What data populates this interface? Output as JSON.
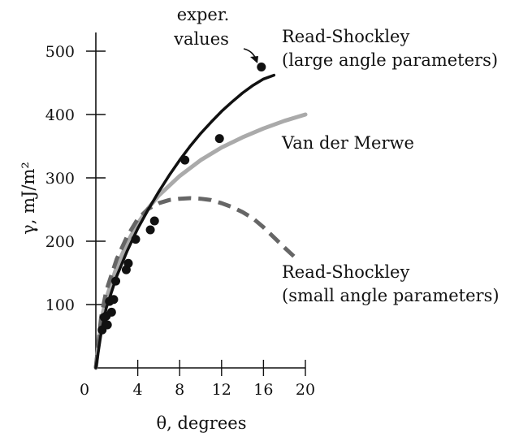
{
  "chart_data": {
    "type": "line",
    "xlabel": "θ, degrees",
    "ylabel": "γ, mJ/m²",
    "xlim": [
      0,
      20
    ],
    "ylim": [
      0,
      500
    ],
    "x_ticks": [
      0,
      4,
      8,
      12,
      16,
      20
    ],
    "x_tick_labels": [
      "0",
      "4",
      "8",
      "12",
      "16",
      "20"
    ],
    "y_ticks": [
      100,
      200,
      300,
      400,
      500
    ],
    "y_tick_labels": [
      "100",
      "200",
      "300",
      "400",
      "500"
    ],
    "grid": false,
    "series": [
      {
        "name": "Read-Shockley (large angle parameters)",
        "style": "solid",
        "color": "#111111",
        "x": [
          0,
          0.5,
          1,
          2,
          3,
          4,
          5,
          6,
          7,
          8,
          9,
          10,
          11,
          12,
          13,
          14,
          15,
          16,
          17
        ],
        "y": [
          0,
          55,
          95,
          145,
          185,
          220,
          250,
          278,
          304,
          328,
          350,
          370,
          388,
          405,
          420,
          434,
          446,
          456,
          462
        ]
      },
      {
        "name": "Van der Merwe",
        "style": "solid",
        "color": "#aaaaaa",
        "x": [
          0,
          0.5,
          1,
          2,
          3,
          4,
          5,
          6,
          8,
          10,
          12,
          14,
          16,
          18,
          20
        ],
        "y": [
          0,
          75,
          110,
          160,
          198,
          228,
          252,
          272,
          303,
          328,
          348,
          364,
          378,
          390,
          400
        ]
      },
      {
        "name": "Read-Shockley (small angle parameters)",
        "style": "dashed",
        "color": "#666666",
        "x": [
          0,
          0.5,
          1,
          2,
          3,
          4,
          5,
          6,
          7,
          8,
          9,
          10,
          11,
          12,
          13,
          14,
          15,
          16,
          17,
          18,
          19.3
        ],
        "y": [
          0,
          80,
          122,
          172,
          208,
          235,
          251,
          260,
          265,
          267,
          268,
          267,
          265,
          260,
          254,
          246,
          236,
          222,
          206,
          190,
          170
        ]
      }
    ],
    "points": {
      "name": "exper. values",
      "x": [
        0.6,
        0.8,
        1.0,
        1.1,
        1.3,
        1.5,
        1.7,
        1.9,
        2.9,
        3.1,
        3.8,
        5.2,
        5.6,
        8.5,
        11.8,
        15.8
      ],
      "y": [
        60,
        80,
        82,
        68,
        105,
        88,
        108,
        137,
        155,
        165,
        203,
        218,
        232,
        328,
        362,
        475
      ]
    },
    "annotations": [
      {
        "id": "exper",
        "lines": [
          "exper.",
          "values"
        ]
      },
      {
        "id": "rs_large",
        "lines": [
          "Read-Shockley",
          "(large angle parameters)"
        ]
      },
      {
        "id": "vdm",
        "lines": [
          "Van der Merwe"
        ]
      },
      {
        "id": "rs_small",
        "lines": [
          "Read-Shockley",
          "(small angle parameters)"
        ]
      }
    ]
  }
}
